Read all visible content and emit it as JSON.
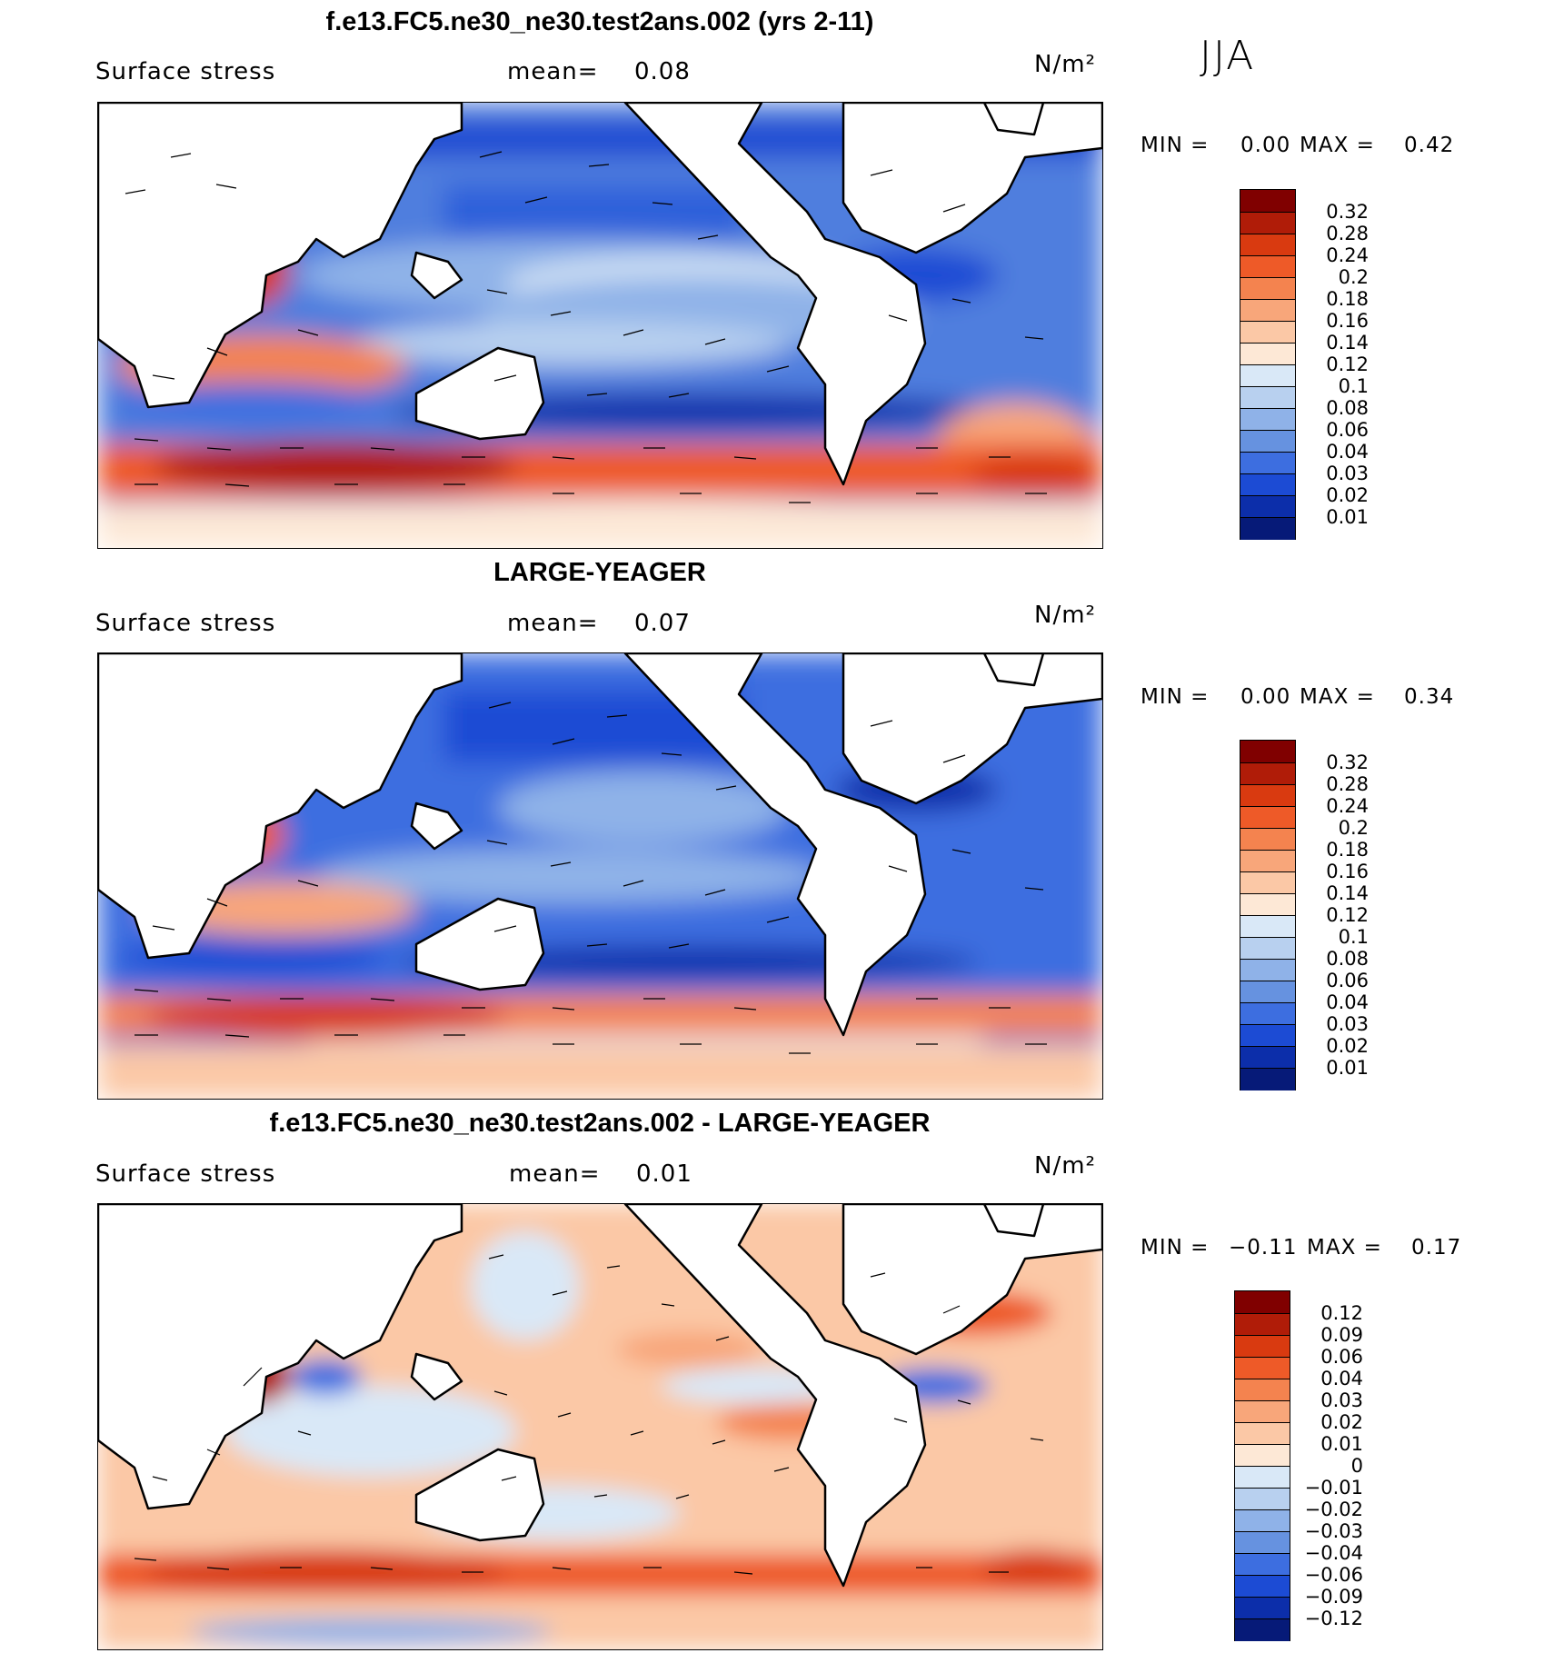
{
  "season": "JJA",
  "units": "N/m²",
  "panels": [
    {
      "title": "f.e13.FC5.ne30_ne30.test2ans.002 (yrs 2-11)",
      "variable": "Surface stress",
      "mean_label": "mean=",
      "mean_value": "0.08",
      "min_label": "MIN =",
      "min_value": "0.00",
      "max_label": "MAX =",
      "max_value": "0.42",
      "colorbar": {
        "labels": [
          "0.32",
          "0.28",
          "0.24",
          "0.2",
          "0.18",
          "0.16",
          "0.14",
          "0.12",
          "0.1",
          "0.08",
          "0.06",
          "0.04",
          "0.03",
          "0.02",
          "0.01"
        ],
        "colors": [
          "#800000",
          "#b01c08",
          "#d93a10",
          "#ee5a28",
          "#f4834f",
          "#f8a67a",
          "#fbc8a6",
          "#fde8d6",
          "#d9e8f7",
          "#b8d0ef",
          "#8fb2e8",
          "#6692e0",
          "#3d6ee0",
          "#1c4bd4",
          "#0c2eaa",
          "#061a78"
        ]
      }
    },
    {
      "title": "LARGE-YEAGER",
      "variable": "Surface stress",
      "mean_label": "mean=",
      "mean_value": "0.07",
      "min_label": "MIN =",
      "min_value": "0.00",
      "max_label": "MAX =",
      "max_value": "0.34",
      "colorbar": {
        "labels": [
          "0.32",
          "0.28",
          "0.24",
          "0.2",
          "0.18",
          "0.16",
          "0.14",
          "0.12",
          "0.1",
          "0.08",
          "0.06",
          "0.04",
          "0.03",
          "0.02",
          "0.01"
        ],
        "colors": [
          "#800000",
          "#b01c08",
          "#d93a10",
          "#ee5a28",
          "#f4834f",
          "#f8a67a",
          "#fbc8a6",
          "#fde8d6",
          "#d9e8f7",
          "#b8d0ef",
          "#8fb2e8",
          "#6692e0",
          "#3d6ee0",
          "#1c4bd4",
          "#0c2eaa",
          "#061a78"
        ]
      }
    },
    {
      "title": "f.e13.FC5.ne30_ne30.test2ans.002 - LARGE-YEAGER",
      "variable": "Surface stress",
      "mean_label": "mean=",
      "mean_value": "0.01",
      "min_label": "MIN =",
      "min_value": "−0.11",
      "max_label": "MAX =",
      "max_value": "0.17",
      "colorbar": {
        "labels": [
          "0.12",
          "0.09",
          "0.06",
          "0.04",
          "0.03",
          "0.02",
          "0.01",
          "0",
          "−0.01",
          "−0.02",
          "−0.03",
          "−0.04",
          "−0.06",
          "−0.09",
          "−0.12"
        ],
        "colors": [
          "#800000",
          "#b01c08",
          "#d93a10",
          "#ee5a28",
          "#f4834f",
          "#f8a67a",
          "#fbc8a6",
          "#fde8d6",
          "#d9e8f7",
          "#b8d0ef",
          "#8fb2e8",
          "#6692e0",
          "#3d6ee0",
          "#1c4bd4",
          "#0c2eaa",
          "#061a78"
        ]
      }
    }
  ]
}
